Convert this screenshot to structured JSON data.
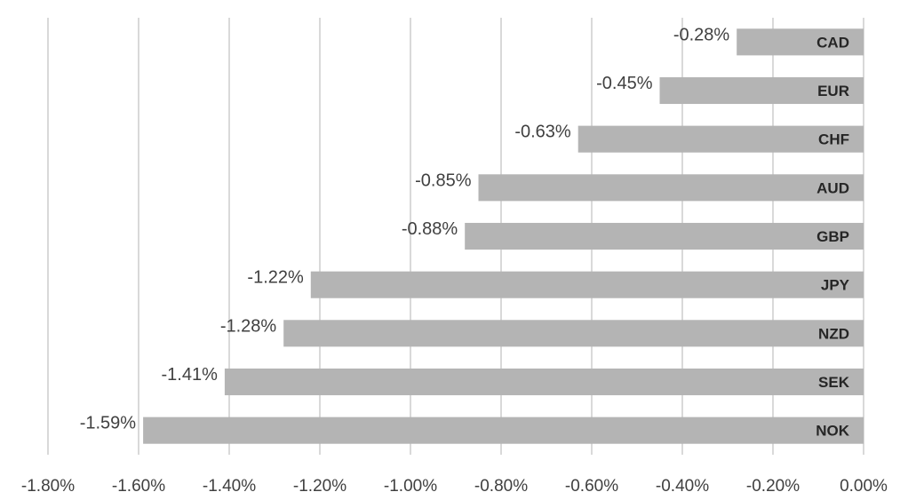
{
  "chart_data": {
    "type": "bar",
    "orientation": "horizontal",
    "title": "",
    "xlabel": "",
    "ylabel": "",
    "categories": [
      "CAD",
      "EUR",
      "CHF",
      "AUD",
      "GBP",
      "JPY",
      "NZD",
      "SEK",
      "NOK"
    ],
    "values": [
      -0.28,
      -0.45,
      -0.63,
      -0.85,
      -0.88,
      -1.22,
      -1.28,
      -1.41,
      -1.59
    ],
    "data_labels": [
      "-0.28%",
      "-0.45%",
      "-0.63%",
      "-0.85%",
      "-0.88%",
      "-1.22%",
      "-1.28%",
      "-1.41%",
      "-1.59%"
    ],
    "xlim": [
      -1.8,
      0
    ],
    "x_ticks": [
      -1.8,
      -1.6,
      -1.4,
      -1.2,
      -1.0,
      -0.8,
      -0.6,
      -0.4,
      -0.2,
      0
    ],
    "x_tick_labels": [
      "-1.80%",
      "-1.60%",
      "-1.40%",
      "-1.20%",
      "-1.00%",
      "-0.80%",
      "-0.60%",
      "-0.40%",
      "-0.20%",
      "0.00%"
    ],
    "grid": "vertical",
    "legend": "none",
    "colors": {
      "bar": "#b4b4b4",
      "grid": "#d9d9d9",
      "text": "#404040",
      "category": "#262626"
    }
  }
}
